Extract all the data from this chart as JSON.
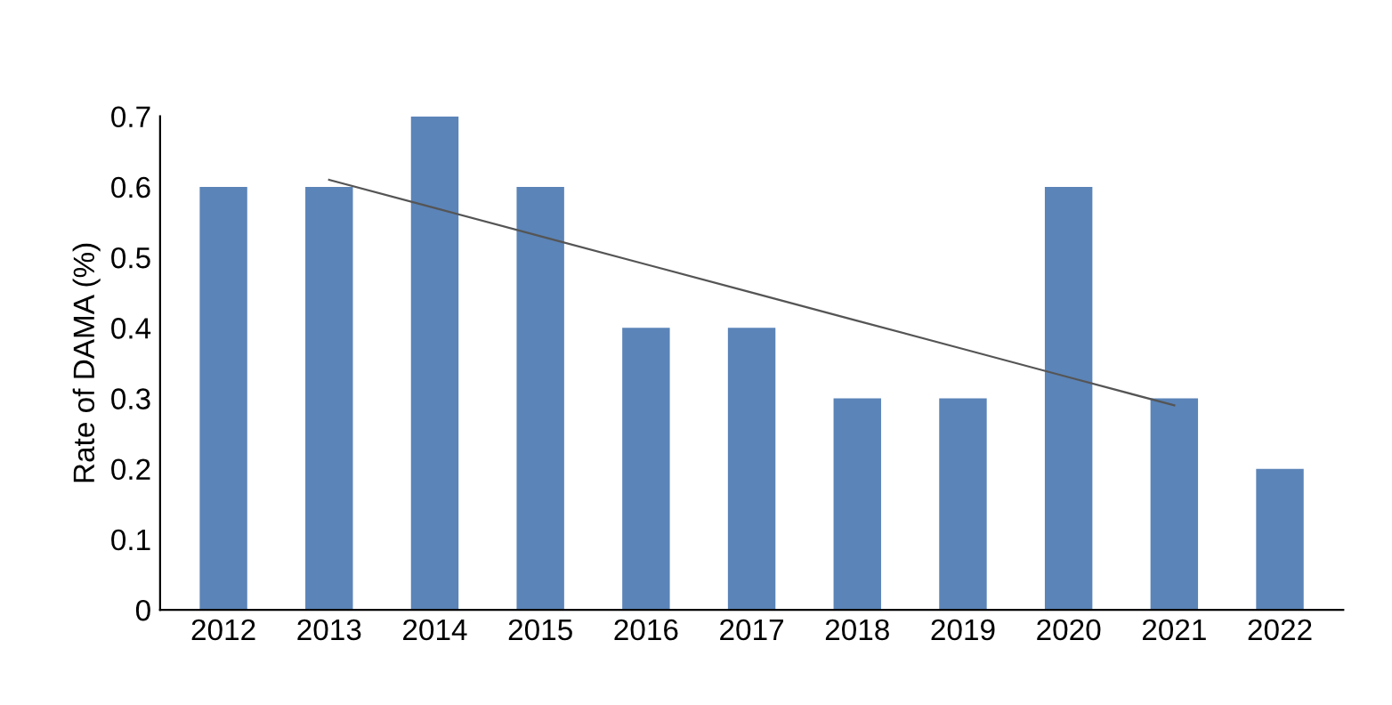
{
  "chart_data": {
    "type": "bar",
    "ylabel": "Rate of DAMA (%)",
    "categories": [
      "2012",
      "2013",
      "2014",
      "2015",
      "2016",
      "2017",
      "2018",
      "2019",
      "2020",
      "2021",
      "2022"
    ],
    "series": [
      {
        "color": "#5b84b8",
        "values": [
          0.6,
          0.6,
          0.7,
          0.6,
          0.4,
          0.4,
          0.3,
          0.3,
          0.6,
          0.3,
          0.2
        ]
      },
      {
        "type": "line",
        "color": "#555555",
        "values": [
          null,
          0.61,
          0.57,
          0.53,
          0.49,
          0.45,
          0.41,
          0.37,
          0.33,
          0.29,
          null
        ]
      }
    ],
    "ylim": [
      0,
      0.7
    ],
    "yticks": [
      0,
      0.1,
      0.2,
      0.3,
      0.4,
      0.5,
      0.6,
      0.7
    ],
    "grid": false,
    "legend": false
  }
}
